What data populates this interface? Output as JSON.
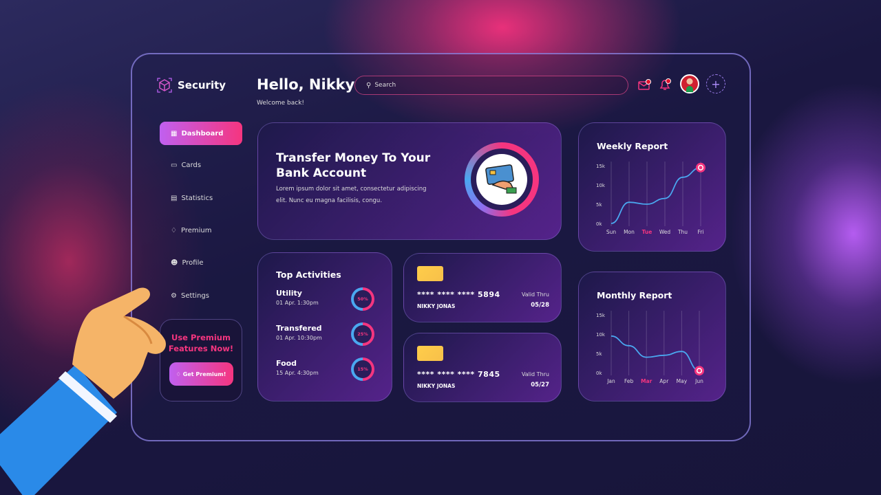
{
  "app": {
    "name": "Security"
  },
  "header": {
    "greeting": "Hello, Nikky",
    "subtitle": "Welcome back!",
    "search_placeholder": "Search"
  },
  "sidebar": {
    "items": [
      {
        "label": "Dashboard",
        "icon": "grid-icon",
        "active": true
      },
      {
        "label": "Cards",
        "icon": "card-icon"
      },
      {
        "label": "Statistics",
        "icon": "bar-chart-icon"
      },
      {
        "label": "Premium",
        "icon": "diamond-icon"
      },
      {
        "label": "Profile",
        "icon": "user-icon"
      },
      {
        "label": "Settings",
        "icon": "gear-icon"
      }
    ],
    "promo": {
      "title": "Use Premium Features Now!",
      "button": "Get Premium!"
    }
  },
  "transfer": {
    "title": "Transfer Money To Your Bank Account",
    "body": "Lorem ipsum dolor sit amet, consectetur adipiscing elit. Nunc eu magna facilisis, congu."
  },
  "activities": {
    "title": "Top Activities",
    "items": [
      {
        "name": "Utility",
        "date": "01 Apr. 1:30pm",
        "percent": "50%",
        "value": 50
      },
      {
        "name": "Transfered",
        "date": "01 Apr. 10:30pm",
        "percent": "25%",
        "value": 25
      },
      {
        "name": "Food",
        "date": "15 Apr. 4:30pm",
        "percent": "15%",
        "value": 15
      }
    ]
  },
  "cards": [
    {
      "number": "**** **** **** 5894",
      "holder": "NIKKY JONAS",
      "valid_label": "Valid Thru",
      "valid": "05/28"
    },
    {
      "number": "**** **** **** 7845",
      "holder": "NIKKY JONAS",
      "valid_label": "Valid Thru",
      "valid": "05/27"
    }
  ],
  "colors": {
    "accent": "#f5357f",
    "line": "#4aa8f0",
    "purple": "#c060f0"
  },
  "chart_data": [
    {
      "type": "line",
      "title": "Weekly Report",
      "categories": [
        "Sun",
        "Mon",
        "Tue",
        "Wed",
        "Thu",
        "Fri"
      ],
      "values": [
        0,
        5500,
        5000,
        6500,
        12000,
        14500
      ],
      "highlight": "Tue",
      "yticks": [
        "0k",
        "5k",
        "10k",
        "15k"
      ],
      "ylim": [
        0,
        15000
      ],
      "grid": "vertical"
    },
    {
      "type": "line",
      "title": "Monthly Report",
      "categories": [
        "Jan",
        "Feb",
        "Mar",
        "Apr",
        "May",
        "Jun"
      ],
      "values": [
        9500,
        7000,
        4000,
        4500,
        5500,
        500
      ],
      "highlight": "Mar",
      "yticks": [
        "0k",
        "5k",
        "10k",
        "15k"
      ],
      "ylim": [
        0,
        15000
      ],
      "grid": "vertical"
    }
  ]
}
